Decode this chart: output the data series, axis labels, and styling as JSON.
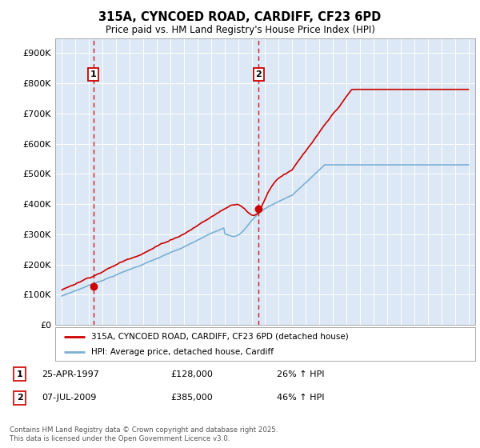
{
  "title_line1": "315A, CYNCOED ROAD, CARDIFF, CF23 6PD",
  "title_line2": "Price paid vs. HM Land Registry's House Price Index (HPI)",
  "background_color": "#dce8f5",
  "outer_bg_color": "#ffffff",
  "red_line_color": "#cc0000",
  "blue_line_color": "#7bafd4",
  "sale1_date_num": 1997.32,
  "sale1_price": 128000,
  "sale2_date_num": 2009.52,
  "sale2_price": 385000,
  "legend_red": "315A, CYNCOED ROAD, CARDIFF, CF23 6PD (detached house)",
  "legend_blue": "HPI: Average price, detached house, Cardiff",
  "footer": "Contains HM Land Registry data © Crown copyright and database right 2025.\nThis data is licensed under the Open Government Licence v3.0.",
  "xlim_min": 1994.5,
  "xlim_max": 2025.5,
  "ylim_min": 0,
  "ylim_max": 950000
}
